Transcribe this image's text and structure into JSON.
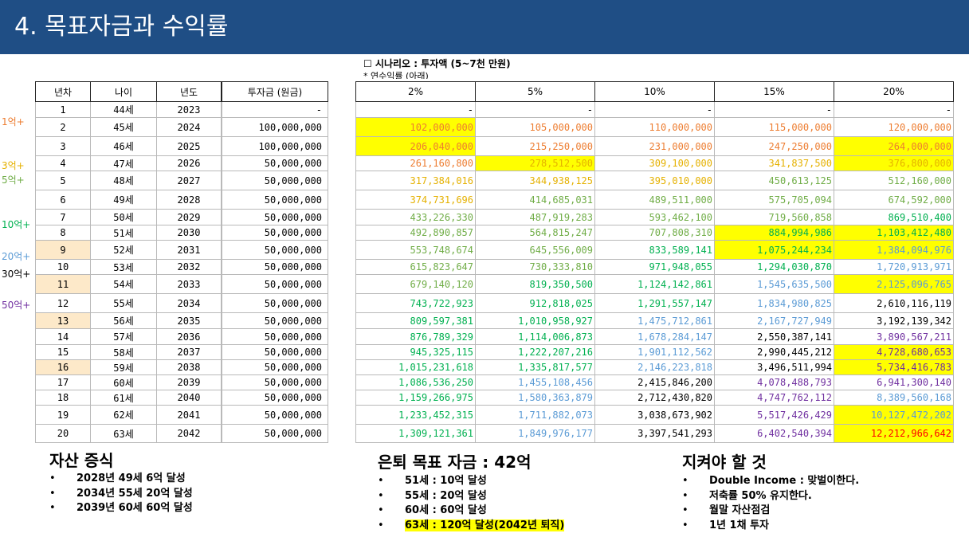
{
  "header": {
    "title": "4. 목표자금과 수익률"
  },
  "scenario": {
    "title": "☐ 시나리오 : 투자액 (5~7천 만원)",
    "note": "* 연수익률 (아래)"
  },
  "colors": {
    "header_bg": "#1f4e85",
    "highlight": "#ffff00",
    "year_highlight": "#fde9c9"
  },
  "base_table": {
    "headers": [
      "년차",
      "나이",
      "년도"
    ],
    "rows": [
      [
        "1",
        "44세",
        "2023"
      ],
      [
        "2",
        "45세",
        "2024"
      ],
      [
        "3",
        "46세",
        "2025"
      ],
      [
        "4",
        "47세",
        "2026"
      ],
      [
        "5",
        "48세",
        "2027"
      ],
      [
        "6",
        "49세",
        "2028"
      ],
      [
        "7",
        "50세",
        "2029"
      ],
      [
        "8",
        "51세",
        "2030"
      ],
      [
        "9",
        "52세",
        "2031"
      ],
      [
        "10",
        "53세",
        "2032"
      ],
      [
        "11",
        "54세",
        "2033"
      ],
      [
        "12",
        "55세",
        "2034"
      ],
      [
        "13",
        "56세",
        "2035"
      ],
      [
        "14",
        "57세",
        "2036"
      ],
      [
        "15",
        "58세",
        "2037"
      ],
      [
        "16",
        "59세",
        "2038"
      ],
      [
        "17",
        "60세",
        "2039"
      ],
      [
        "18",
        "61세",
        "2040"
      ],
      [
        "19",
        "62세",
        "2041"
      ],
      [
        "20",
        "63세",
        "2042"
      ]
    ]
  },
  "investment_table": {
    "header": "투자금 (원금)",
    "values": [
      "-",
      "100,000,000",
      "100,000,000",
      "50,000,000",
      "50,000,000",
      "50,000,000",
      "50,000,000",
      "50,000,000",
      "50,000,000",
      "50,000,000",
      "50,000,000",
      "50,000,000",
      "50,000,000",
      "50,000,000",
      "50,000,000",
      "50,000,000",
      "50,000,000",
      "50,000,000",
      "50,000,000",
      "50,000,000"
    ]
  },
  "returns_table": {
    "headers": [
      "2%",
      "5%",
      "10%",
      "15%",
      "20%"
    ],
    "rows": [
      [
        "-",
        "-",
        "-",
        "-",
        "-"
      ],
      [
        "102,000,000",
        "105,000,000",
        "110,000,000",
        "115,000,000",
        "120,000,000"
      ],
      [
        "206,040,000",
        "215,250,000",
        "231,000,000",
        "247,250,000",
        "264,000,000"
      ],
      [
        "261,160,800",
        "278,512,500",
        "309,100,000",
        "341,837,500",
        "376,800,000"
      ],
      [
        "317,384,016",
        "344,938,125",
        "395,010,000",
        "450,613,125",
        "512,160,000"
      ],
      [
        "374,731,696",
        "414,685,031",
        "489,511,000",
        "575,705,094",
        "674,592,000"
      ],
      [
        "433,226,330",
        "487,919,283",
        "593,462,100",
        "719,560,858",
        "869,510,400"
      ],
      [
        "492,890,857",
        "564,815,247",
        "707,808,310",
        "884,994,986",
        "1,103,412,480"
      ],
      [
        "553,748,674",
        "645,556,009",
        "833,589,141",
        "1,075,244,234",
        "1,384,094,976"
      ],
      [
        "615,823,647",
        "730,333,810",
        "971,948,055",
        "1,294,030,870",
        "1,720,913,971"
      ],
      [
        "679,140,120",
        "819,350,500",
        "1,124,142,861",
        "1,545,635,500",
        "2,125,096,765"
      ],
      [
        "743,722,923",
        "912,818,025",
        "1,291,557,147",
        "1,834,980,825",
        "2,610,116,119"
      ],
      [
        "809,597,381",
        "1,010,958,927",
        "1,475,712,861",
        "2,167,727,949",
        "3,192,139,342"
      ],
      [
        "876,789,329",
        "1,114,006,873",
        "1,678,284,147",
        "2,550,387,141",
        "3,890,567,211"
      ],
      [
        "945,325,115",
        "1,222,207,216",
        "1,901,112,562",
        "2,990,445,212",
        "4,728,680,653"
      ],
      [
        "1,015,231,618",
        "1,335,817,577",
        "2,146,223,818",
        "3,496,511,994",
        "5,734,416,783"
      ],
      [
        "1,086,536,250",
        "1,455,108,456",
        "2,415,846,200",
        "4,078,488,793",
        "6,941,300,140"
      ],
      [
        "1,159,266,975",
        "1,580,363,879",
        "2,712,430,820",
        "4,747,762,112",
        "8,389,560,168"
      ],
      [
        "1,233,452,315",
        "1,711,882,073",
        "3,038,673,902",
        "5,517,426,429",
        "10,127,472,202"
      ],
      [
        "1,309,121,361",
        "1,849,976,177",
        "3,397,541,293",
        "6,402,540,394",
        "12,212,966,642"
      ]
    ]
  },
  "milestone_labels": [
    "1억+",
    "3억+",
    "5억+",
    "10억+",
    "20억+",
    "30억+",
    "50억+"
  ],
  "asset_growth": {
    "title": "자산 증식",
    "items": [
      "2028년 49세 6억 달성",
      "2034년 55세 20억 달성",
      "2039년 60세 60억 달성"
    ]
  },
  "retirement": {
    "title": "은퇴 목표 자금 : 42억",
    "items": [
      "51세 : 10억 달성",
      "55세 : 20억 달성",
      "60세 : 60억 달성",
      "63세 : 120억 달성(2042년 퇴직)"
    ]
  },
  "rules": {
    "title": "지켜야 할 것",
    "items": [
      "Double Income : 맞벌이한다.",
      "저축률 50% 유지한다.",
      "월말 자산점검",
      "1년 1채 투자"
    ]
  }
}
